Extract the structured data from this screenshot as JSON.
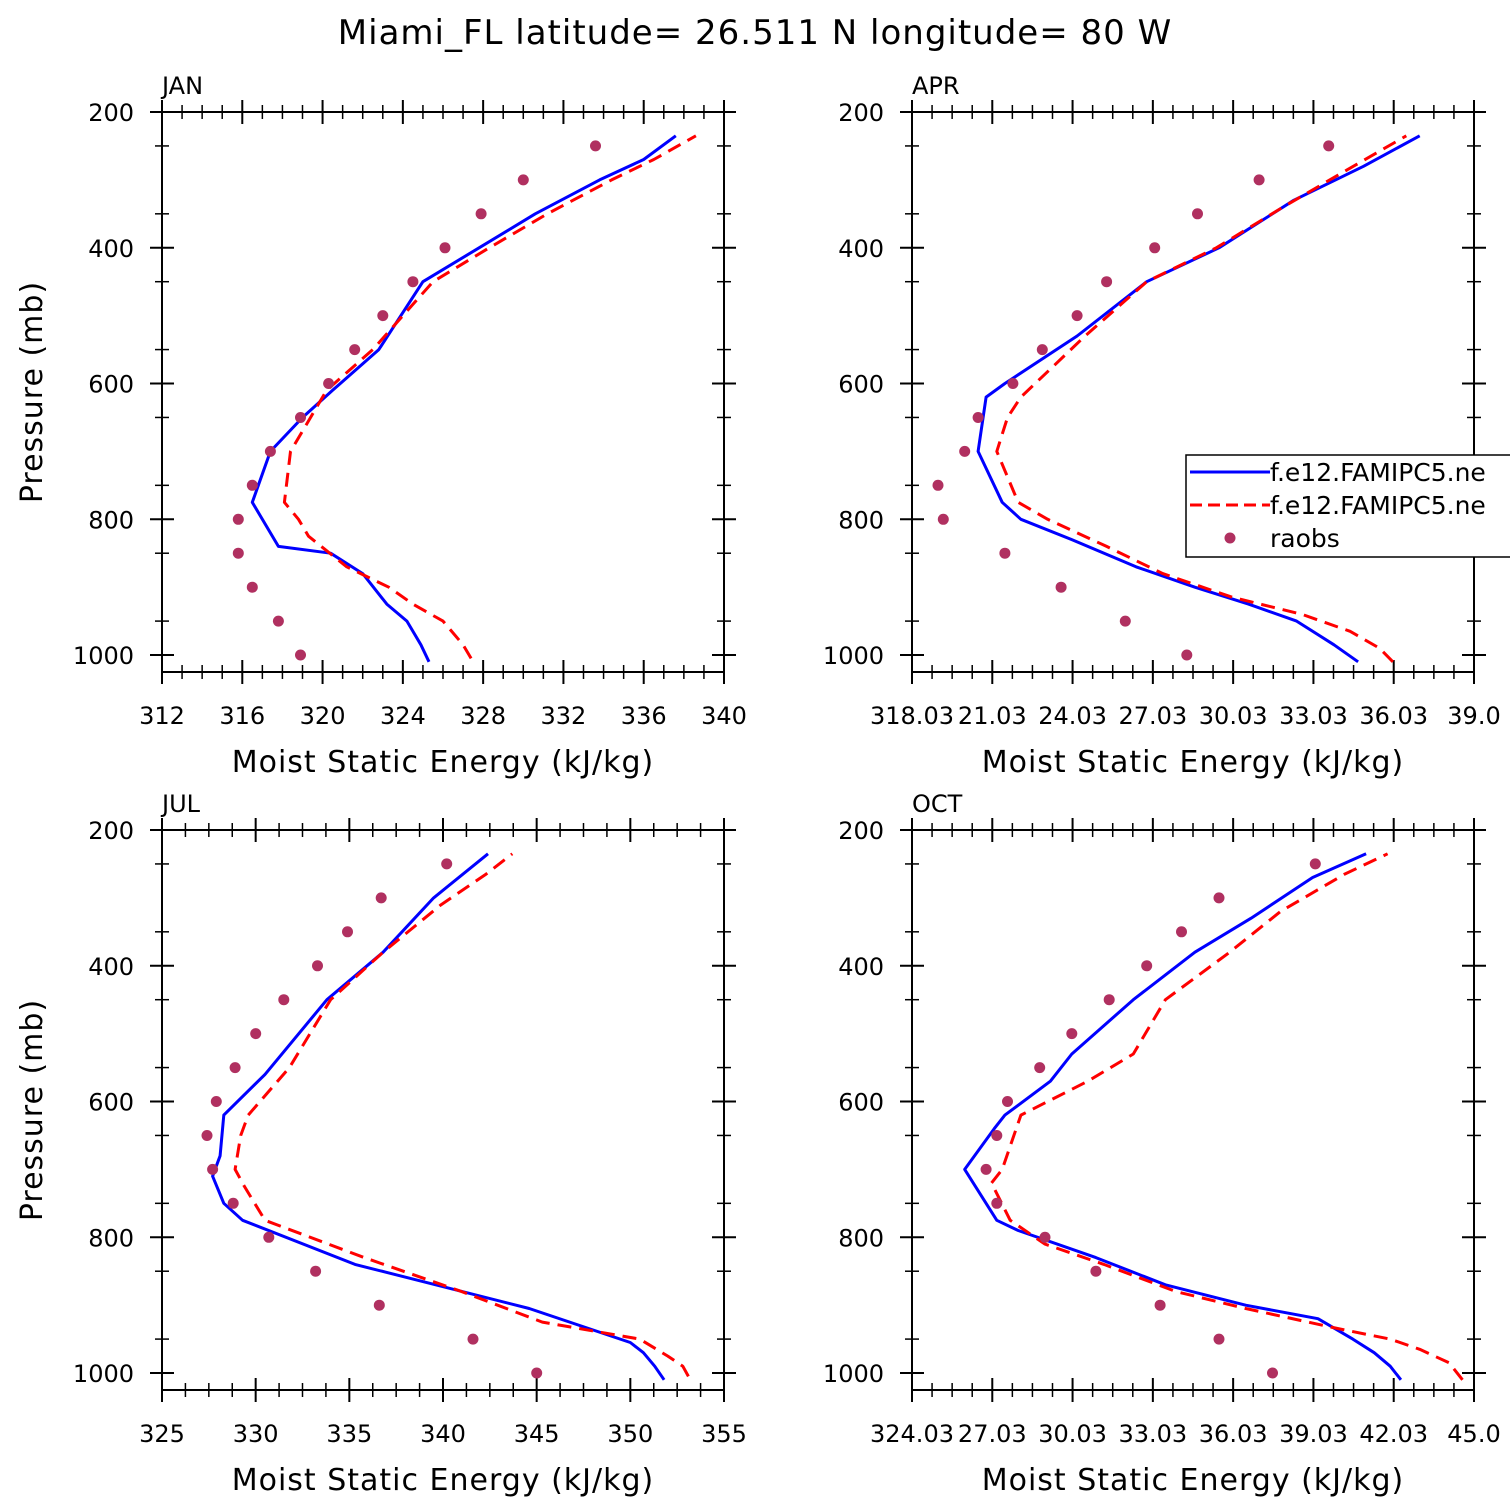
{
  "title": "Miami_FL  latitude= 26.511 N longitude= 80 W",
  "chart_data": [
    {
      "type": "line",
      "label": "JAN",
      "xlabel": "Moist Static Energy (kJ/kg)",
      "ylabel": "Pressure (mb)",
      "xlim": [
        312,
        340
      ],
      "ylim": [
        200,
        1025
      ],
      "y_inverted": true,
      "xticks": [
        "312",
        "316",
        "320",
        "324",
        "328",
        "332",
        "336",
        "340"
      ],
      "yticks": [
        "200",
        "400",
        "600",
        "800",
        "1000"
      ],
      "series": [
        {
          "style": "solid",
          "color": "#0000ff",
          "x": [
            325.3,
            324.9,
            324.2,
            323.2,
            322.0,
            320.4,
            317.8,
            316.5,
            317.4,
            319.0,
            320.5,
            322.8,
            325.0,
            327.8,
            330.6,
            333.8,
            336.0,
            337.6
          ],
          "y": [
            1010,
            985,
            950,
            925,
            880,
            850,
            840,
            775,
            700,
            650,
            610,
            550,
            450,
            400,
            350,
            300,
            270,
            235
          ]
        },
        {
          "style": "dashed",
          "color": "#ff0000",
          "x": [
            327.4,
            327.0,
            326.0,
            324.5,
            323.3,
            321.2,
            319.3,
            318.8,
            318.1,
            318.4,
            320.2,
            322.5,
            325.5,
            328.3,
            331.2,
            334.4,
            336.5,
            338.6
          ],
          "y": [
            1005,
            985,
            950,
            925,
            900,
            870,
            825,
            800,
            775,
            700,
            610,
            550,
            450,
            400,
            350,
            300,
            270,
            235
          ]
        }
      ],
      "points": {
        "color": "#b03060",
        "x": [
          318.9,
          317.8,
          316.5,
          315.8,
          315.8,
          316.5,
          317.4,
          318.9,
          320.3,
          321.6,
          323.0,
          324.5,
          326.1,
          327.9,
          330.0,
          333.6
        ],
        "y": [
          1000,
          950,
          900,
          850,
          800,
          750,
          700,
          650,
          600,
          550,
          500,
          450,
          400,
          350,
          300,
          250
        ]
      }
    },
    {
      "type": "line",
      "label": "APR",
      "xlabel": "Moist Static Energy (kJ/kg)",
      "ylabel": "",
      "xlim": [
        318.03,
        339.03
      ],
      "ylim": [
        200,
        1025
      ],
      "y_inverted": true,
      "xticks": [
        "318.03",
        "21.03",
        "24.03",
        "27.03",
        "30.03",
        "33.03",
        "36.03",
        "39.0"
      ],
      "yticks": [
        "200",
        "400",
        "600",
        "800",
        "1000"
      ],
      "series": [
        {
          "style": "solid",
          "color": "#0000ff",
          "x": [
            334.7,
            333.8,
            332.4,
            330.6,
            328.6,
            326.4,
            324.0,
            322.1,
            321.4,
            320.5,
            320.8,
            321.5,
            324.2,
            326.8,
            329.5,
            332.3,
            334.9,
            337.0
          ],
          "y": [
            1010,
            985,
            950,
            925,
            900,
            870,
            830,
            800,
            775,
            700,
            620,
            600,
            530,
            450,
            400,
            330,
            280,
            235
          ]
        },
        {
          "style": "dashed",
          "color": "#ff0000",
          "x": [
            336.0,
            335.5,
            334.4,
            332.6,
            330.0,
            327.4,
            325.3,
            323.1,
            322.0,
            321.2,
            321.6,
            322.1,
            324.5,
            326.8,
            329.4,
            331.9,
            334.3,
            336.5
          ],
          "y": [
            1010,
            990,
            965,
            940,
            915,
            880,
            840,
            800,
            775,
            700,
            650,
            620,
            530,
            450,
            400,
            340,
            285,
            235
          ]
        }
      ],
      "points": {
        "color": "#b03060",
        "x": [
          328.3,
          326.0,
          323.6,
          321.5,
          319.2,
          319.0,
          320.0,
          320.5,
          321.8,
          322.9,
          324.2,
          325.3,
          327.1,
          328.7,
          331.0,
          333.6
        ],
        "y": [
          1000,
          950,
          900,
          850,
          800,
          750,
          700,
          650,
          600,
          550,
          500,
          450,
          400,
          350,
          300,
          250
        ]
      }
    },
    {
      "type": "line",
      "label": "JUL",
      "xlabel": "Moist Static Energy (kJ/kg)",
      "ylabel": "Pressure (mb)",
      "xlim": [
        325,
        355
      ],
      "ylim": [
        200,
        1025
      ],
      "y_inverted": true,
      "xticks": [
        "325",
        "330",
        "335",
        "340",
        "345",
        "350",
        "355"
      ],
      "yticks": [
        "200",
        "400",
        "600",
        "800",
        "1000"
      ],
      "series": [
        {
          "style": "solid",
          "color": "#0000ff",
          "x": [
            351.8,
            351.3,
            350.7,
            350.0,
            344.6,
            335.3,
            329.3,
            328.3,
            327.7,
            328.1,
            328.3,
            330.5,
            333.8,
            336.8,
            339.5,
            342.4
          ],
          "y": [
            1010,
            990,
            970,
            955,
            905,
            840,
            775,
            750,
            710,
            680,
            620,
            560,
            450,
            380,
            300,
            235
          ]
        },
        {
          "style": "dashed",
          "color": "#ff0000",
          "x": [
            353.1,
            352.8,
            352.0,
            350.5,
            345.3,
            341.0,
            335.8,
            330.5,
            329.4,
            328.9,
            329.2,
            329.6,
            331.8,
            334.0,
            336.8,
            339.9,
            342.3,
            343.7
          ],
          "y": [
            1005,
            990,
            975,
            950,
            925,
            880,
            830,
            775,
            725,
            700,
            650,
            620,
            550,
            450,
            380,
            310,
            265,
            235
          ]
        }
      ],
      "points": {
        "color": "#b03060",
        "x": [
          345.0,
          341.6,
          336.6,
          333.2,
          330.7,
          328.8,
          327.7,
          327.4,
          327.9,
          328.9,
          330.0,
          331.5,
          333.3,
          334.9,
          336.7,
          340.2
        ],
        "y": [
          1000,
          950,
          900,
          850,
          800,
          750,
          700,
          650,
          600,
          550,
          500,
          450,
          400,
          350,
          300,
          250
        ]
      }
    },
    {
      "type": "line",
      "label": "OCT",
      "xlabel": "Moist Static Energy (kJ/kg)",
      "ylabel": "",
      "xlim": [
        324.03,
        345.03
      ],
      "ylim": [
        200,
        1025
      ],
      "y_inverted": true,
      "xticks": [
        "324.03",
        "27.03",
        "30.03",
        "33.03",
        "36.03",
        "39.03",
        "42.03",
        "45.0"
      ],
      "yticks": [
        "200",
        "400",
        "600",
        "800",
        "1000"
      ],
      "series": [
        {
          "style": "solid",
          "color": "#0000ff",
          "x": [
            342.3,
            341.9,
            341.3,
            340.5,
            339.2,
            336.5,
            333.5,
            330.9,
            328.0,
            327.2,
            326.0,
            327.1,
            327.5,
            329.2,
            330.0,
            332.3,
            334.6,
            336.7,
            339.0,
            341.0
          ],
          "y": [
            1010,
            990,
            970,
            950,
            920,
            900,
            870,
            830,
            790,
            775,
            700,
            640,
            620,
            570,
            530,
            450,
            380,
            330,
            270,
            235
          ]
        },
        {
          "style": "dashed",
          "color": "#ff0000",
          "x": [
            344.6,
            344.1,
            343.0,
            341.9,
            340.0,
            336.5,
            333.9,
            331.2,
            329.0,
            327.7,
            327.0,
            327.4,
            328.1,
            330.6,
            332.3,
            333.5,
            335.9,
            337.8,
            340.2,
            341.8
          ],
          "y": [
            1010,
            985,
            965,
            950,
            935,
            905,
            880,
            840,
            810,
            775,
            720,
            700,
            620,
            570,
            530,
            450,
            380,
            320,
            265,
            235
          ]
        }
      ],
      "points": {
        "color": "#b03060",
        "x": [
          337.5,
          335.5,
          333.3,
          330.9,
          329.0,
          327.2,
          326.8,
          327.2,
          327.6,
          328.8,
          330.0,
          331.4,
          332.8,
          334.1,
          335.5,
          339.1
        ],
        "y": [
          1000,
          950,
          900,
          850,
          800,
          750,
          700,
          650,
          600,
          550,
          500,
          450,
          400,
          350,
          300,
          250
        ]
      }
    }
  ],
  "legend": {
    "panel": 1,
    "placement": "right, overflowing panel edge",
    "entries": [
      {
        "label": "f.e12.FAMIPC5.ne",
        "style": "solid",
        "color": "#0000ff"
      },
      {
        "label": "f.e12.FAMIPC5.ne",
        "style": "dashed",
        "color": "#ff0000"
      },
      {
        "label": "raobs",
        "style": "marker",
        "color": "#b03060"
      }
    ]
  }
}
